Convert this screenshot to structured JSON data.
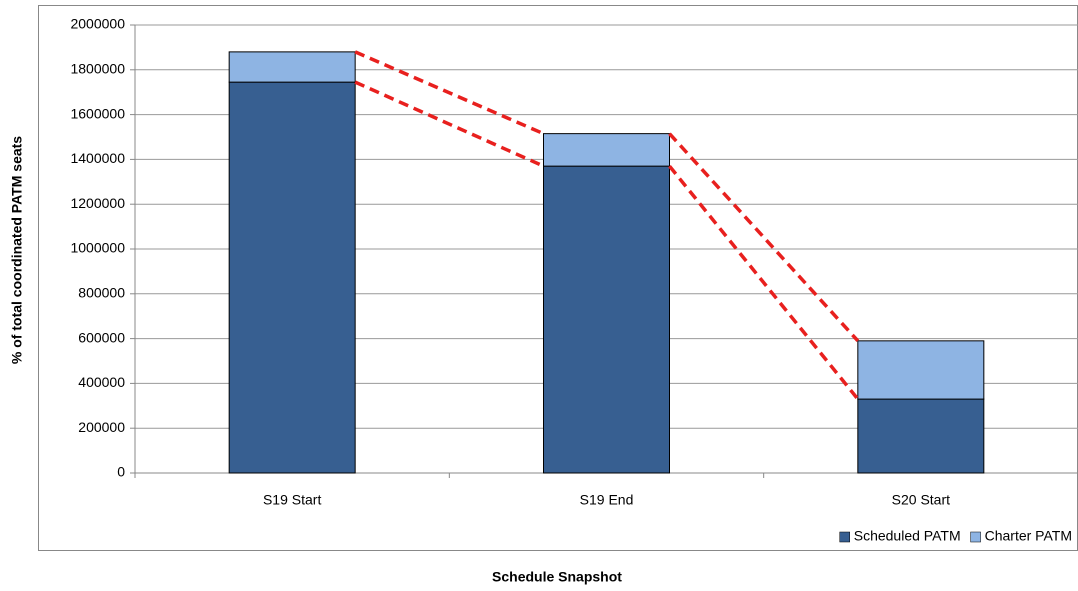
{
  "chart_data": {
    "type": "stacked_bar",
    "x_label": "Schedule Snapshot",
    "y_label": "% of total coordinated PATM seats",
    "categories": [
      "S19 Start",
      "S19 End",
      "S20 Start"
    ],
    "series": [
      {
        "name": "Scheduled PATM",
        "color": "#375f91",
        "values": [
          1745000,
          1370000,
          330000
        ]
      },
      {
        "name": "Charter PATM",
        "color": "#8eb4e3",
        "values": [
          135000,
          145000,
          260000
        ]
      }
    ],
    "ylim": [
      0,
      2000000
    ],
    "yticks": [
      0,
      200000,
      400000,
      600000,
      800000,
      1000000,
      1200000,
      1400000,
      1600000,
      1800000,
      2000000
    ],
    "grid": true,
    "legend": "bottom-right",
    "connector_color": "#e8201e"
  }
}
